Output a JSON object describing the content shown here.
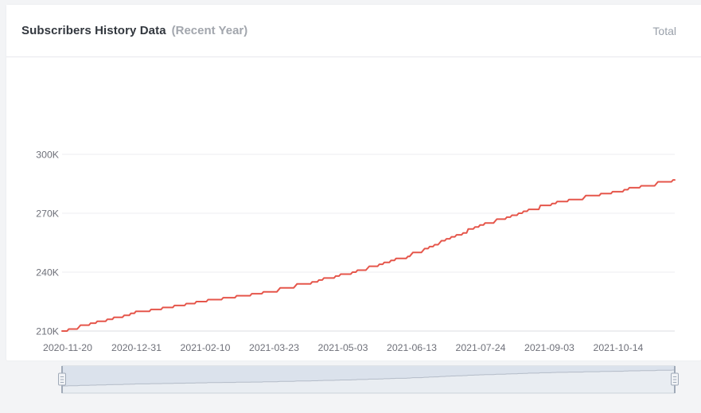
{
  "header": {
    "title": "Subscribers History Data",
    "subtitle": "(Recent Year)",
    "series_label": "Total"
  },
  "colors": {
    "line": "#e5564b",
    "axis_label": "#6e7079",
    "grid_line": "#ededf0",
    "axis_line": "#dbdce0",
    "slider_base": "#e9edf2",
    "slider_fill": "#dbe2ec",
    "slider_border": "#cbd2db",
    "slider_shadow_line": "#b4bcc8",
    "slider_handle": "#a0aab8",
    "slider_handle_fill": "#f1f3f6"
  },
  "chart_data": {
    "type": "line",
    "title": "Subscribers History Data (Recent Year)",
    "legend": [
      "Total"
    ],
    "legend_position": "top-right",
    "grid": true,
    "x_axis_type": "date",
    "x_range": [
      "2020-11-20",
      "2021-11-20"
    ],
    "x_tick_labels": [
      "2020-11-20",
      "2020-12-31",
      "2021-02-10",
      "2021-03-23",
      "2021-05-03",
      "2021-06-13",
      "2021-07-24",
      "2021-09-03",
      "2021-10-14"
    ],
    "y_tick_labels": [
      "210K",
      "240K",
      "270K",
      "300K"
    ],
    "y_tick_values": [
      210000,
      240000,
      270000,
      300000
    ],
    "ylim": [
      210000,
      300000
    ],
    "series": [
      {
        "name": "Total",
        "color": "#e5564b",
        "points": [
          {
            "date": "2020-11-20",
            "day": 0,
            "subscribers": 210000
          },
          {
            "date": "2020-12-31",
            "day": 41,
            "subscribers": 219000
          },
          {
            "date": "2021-02-10",
            "day": 82,
            "subscribers": 225000
          },
          {
            "date": "2021-03-23",
            "day": 123,
            "subscribers": 230000
          },
          {
            "date": "2021-05-03",
            "day": 164,
            "subscribers": 238000
          },
          {
            "date": "2021-06-13",
            "day": 205,
            "subscribers": 248000
          },
          {
            "date": "2021-07-24",
            "day": 246,
            "subscribers": 263000
          },
          {
            "date": "2021-09-03",
            "day": 287,
            "subscribers": 274000
          },
          {
            "date": "2021-10-14",
            "day": 328,
            "subscribers": 281000
          },
          {
            "date": "2021-11-20",
            "day": 365,
            "subscribers": 287000
          }
        ]
      }
    ],
    "slider": {
      "start_pct": 0,
      "end_pct": 100
    }
  }
}
